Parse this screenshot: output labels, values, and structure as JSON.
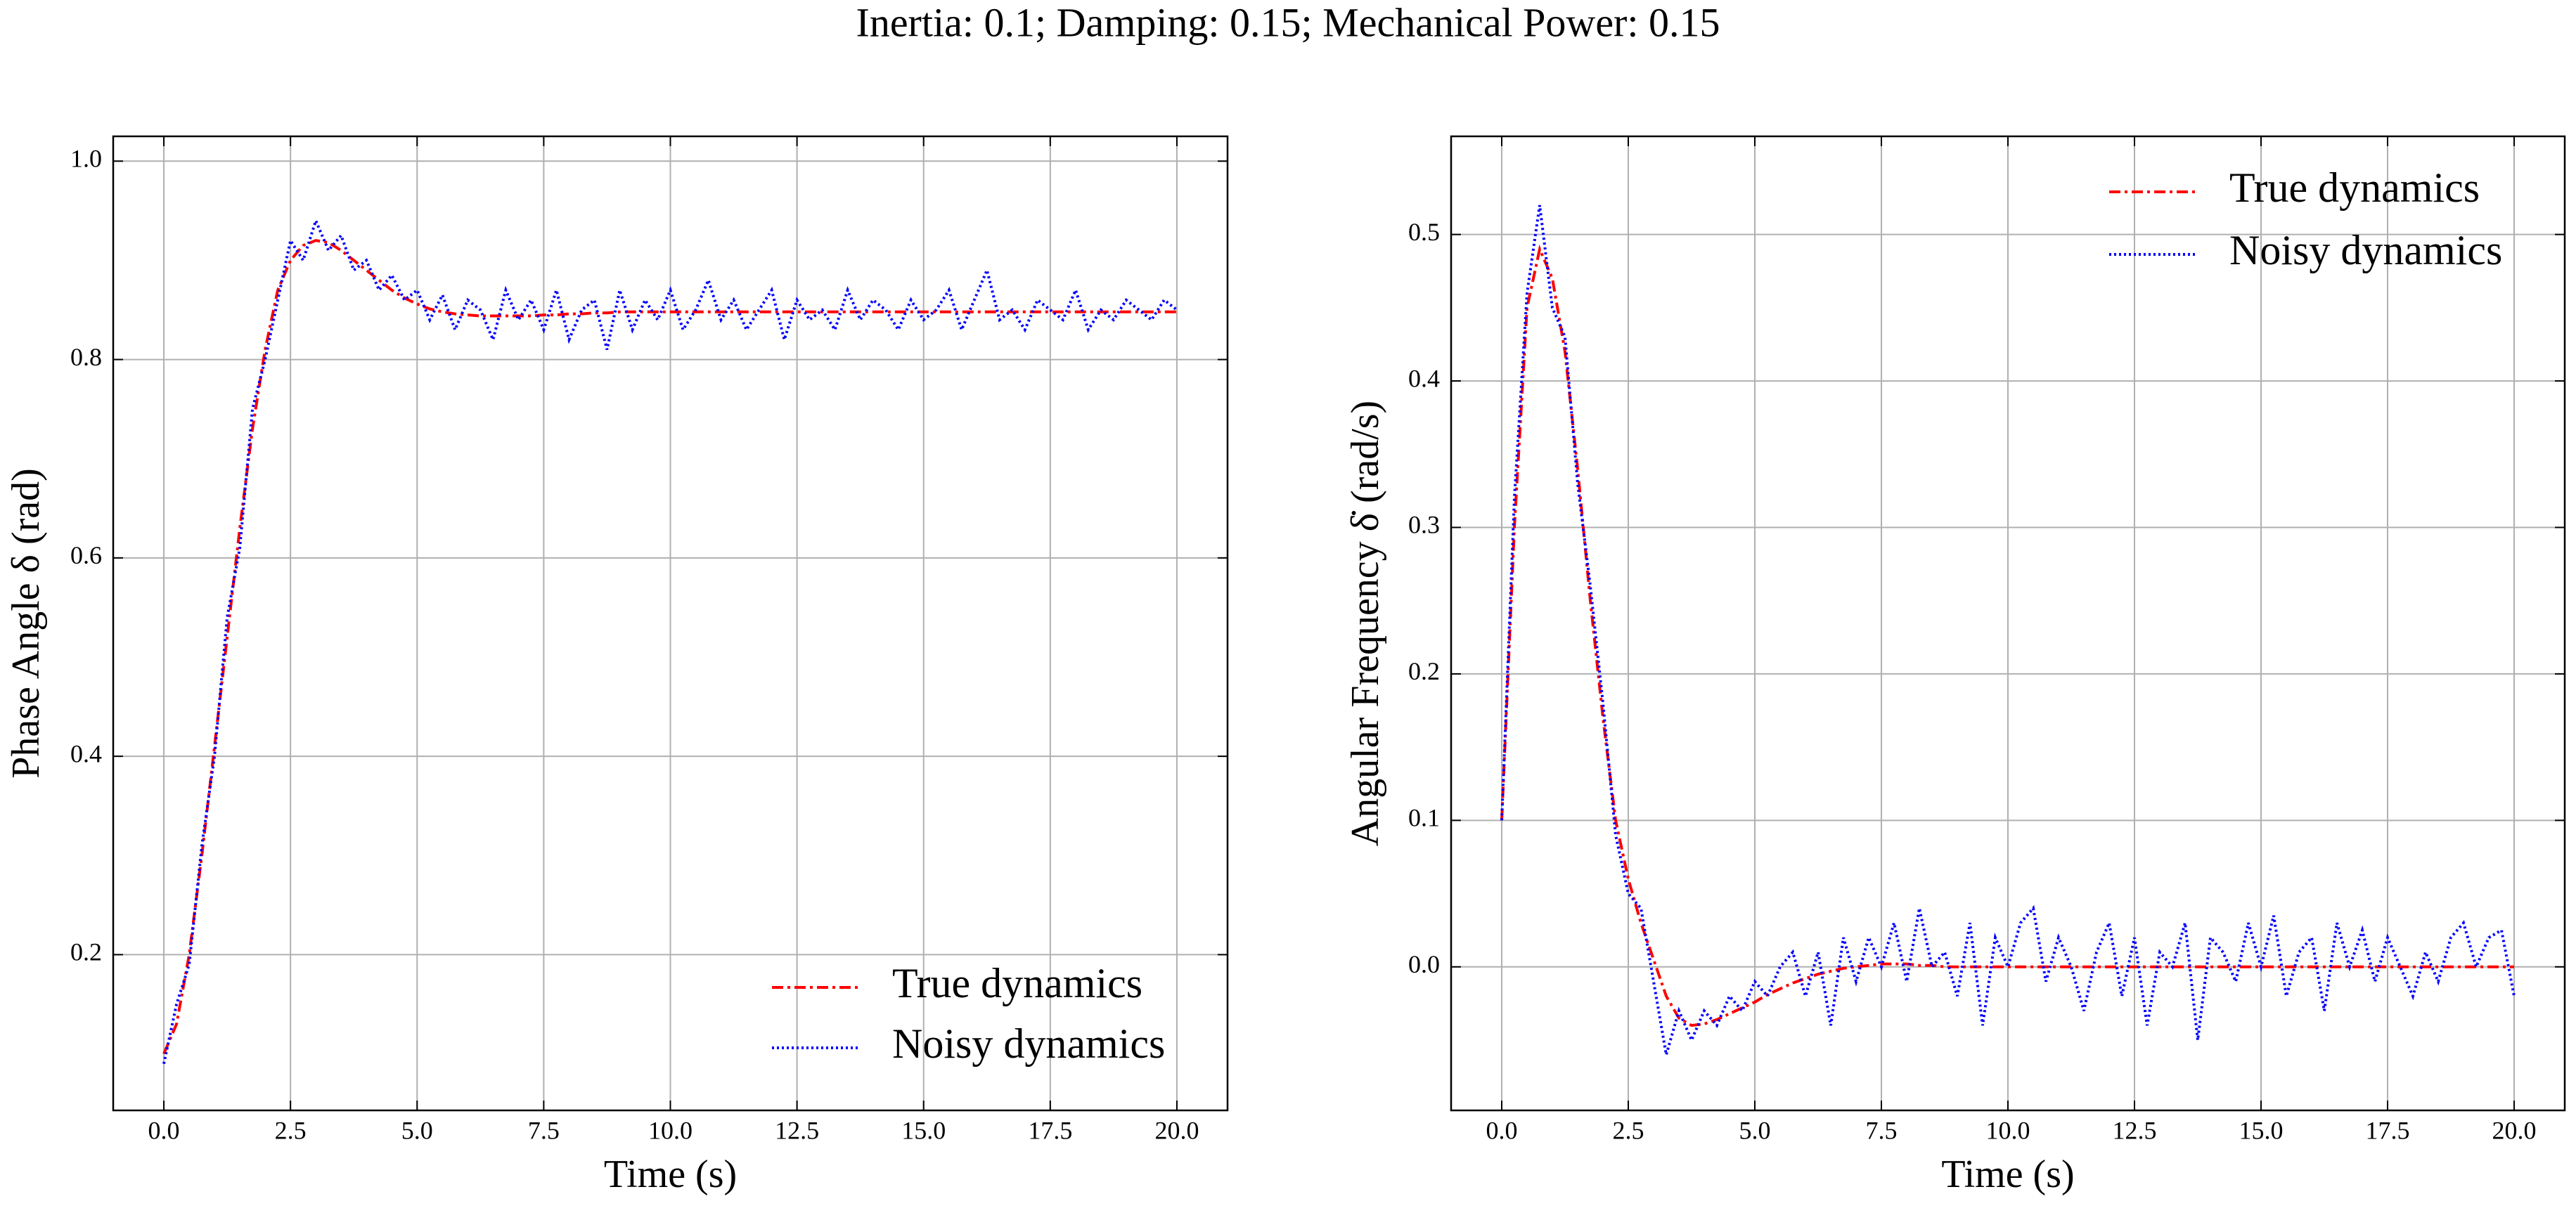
{
  "title": "Inertia: 0.1; Damping: 0.15; Mechanical Power: 0.15",
  "chart_data": [
    {
      "type": "line",
      "xlabel": "Time (s)",
      "ylabel": "Phase Angle δ (rad)",
      "grid": true,
      "legend": "lower right",
      "xlim": [
        -1,
        21
      ],
      "ylim": [
        0.043,
        1.025
      ],
      "xticks": [
        {
          "value": 0,
          "label": "0.0"
        },
        2.5,
        {
          "value": 5,
          "label": "5.0"
        },
        7.5,
        {
          "value": 10,
          "label": "10.0"
        },
        12.5,
        {
          "value": 15,
          "label": "15.0"
        },
        17.5,
        {
          "value": 20,
          "label": "20.0"
        }
      ],
      "yticks": [
        0.2,
        0.4,
        0.6,
        0.8,
        {
          "value": 1,
          "label": "1.0"
        }
      ],
      "x": [
        0,
        0.25,
        0.5,
        0.75,
        1,
        1.25,
        1.5,
        1.75,
        2,
        2.25,
        2.5,
        2.75,
        3,
        3.25,
        3.5,
        3.75,
        4,
        4.25,
        4.5,
        4.75,
        5,
        5.25,
        5.5,
        5.75,
        6,
        6.25,
        6.5,
        6.75,
        7,
        7.25,
        7.5,
        7.75,
        8,
        8.25,
        8.5,
        8.75,
        9,
        9.25,
        9.5,
        9.75,
        10,
        10.25,
        10.5,
        10.75,
        11,
        11.25,
        11.5,
        11.75,
        12,
        12.25,
        12.5,
        12.75,
        13,
        13.25,
        13.5,
        13.75,
        14,
        14.25,
        14.5,
        14.75,
        15,
        15.25,
        15.5,
        15.75,
        16,
        16.25,
        16.5,
        16.75,
        17,
        17.25,
        17.5,
        17.75,
        18,
        18.25,
        18.5,
        18.75,
        19,
        19.25,
        19.5,
        19.75,
        20
      ],
      "series": [
        {
          "name": "True dynamics",
          "color": "#ff0000",
          "style": "dashdot",
          "values": [
            0.1,
            0.13,
            0.2,
            0.3,
            0.41,
            0.52,
            0.63,
            0.73,
            0.81,
            0.87,
            0.9,
            0.915,
            0.92,
            0.918,
            0.91,
            0.9,
            0.89,
            0.88,
            0.87,
            0.862,
            0.856,
            0.851,
            0.848,
            0.846,
            0.845,
            0.844,
            0.844,
            0.844,
            0.844,
            0.844,
            0.845,
            0.845,
            0.846,
            0.846,
            0.847,
            0.847,
            0.848,
            0.848,
            0.848,
            0.848,
            0.848,
            0.848,
            0.848,
            0.848,
            0.848,
            0.848,
            0.848,
            0.848,
            0.848,
            0.848,
            0.848,
            0.848,
            0.848,
            0.848,
            0.848,
            0.848,
            0.848,
            0.848,
            0.848,
            0.848,
            0.848,
            0.848,
            0.848,
            0.848,
            0.848,
            0.848,
            0.848,
            0.848,
            0.848,
            0.848,
            0.848,
            0.848,
            0.848,
            0.848,
            0.848,
            0.848,
            0.848,
            0.848,
            0.848,
            0.848,
            0.848
          ]
        },
        {
          "name": "Noisy dynamics",
          "color": "#0000ff",
          "style": "dotted",
          "values": [
            0.09,
            0.15,
            0.19,
            0.31,
            0.4,
            0.54,
            0.61,
            0.75,
            0.8,
            0.86,
            0.92,
            0.9,
            0.94,
            0.91,
            0.925,
            0.89,
            0.9,
            0.87,
            0.885,
            0.86,
            0.87,
            0.84,
            0.865,
            0.83,
            0.86,
            0.85,
            0.82,
            0.87,
            0.84,
            0.86,
            0.83,
            0.87,
            0.82,
            0.85,
            0.86,
            0.81,
            0.87,
            0.83,
            0.86,
            0.84,
            0.87,
            0.83,
            0.85,
            0.88,
            0.84,
            0.86,
            0.83,
            0.85,
            0.87,
            0.82,
            0.86,
            0.84,
            0.85,
            0.83,
            0.87,
            0.84,
            0.86,
            0.85,
            0.83,
            0.86,
            0.84,
            0.85,
            0.87,
            0.83,
            0.86,
            0.89,
            0.84,
            0.85,
            0.83,
            0.86,
            0.85,
            0.84,
            0.87,
            0.83,
            0.85,
            0.84,
            0.86,
            0.85,
            0.84,
            0.86,
            0.85
          ]
        }
      ]
    },
    {
      "type": "line",
      "xlabel": "Time (s)",
      "ylabel": "Angular Frequency δ̇ (rad/s)",
      "grid": true,
      "legend": "upper right",
      "xlim": [
        -1,
        21
      ],
      "ylim": [
        -0.098,
        0.567
      ],
      "xticks": [
        {
          "value": 0,
          "label": "0.0"
        },
        2.5,
        {
          "value": 5,
          "label": "5.0"
        },
        7.5,
        {
          "value": 10,
          "label": "10.0"
        },
        12.5,
        {
          "value": 15,
          "label": "15.0"
        },
        17.5,
        {
          "value": 20,
          "label": "20.0"
        }
      ],
      "yticks": [
        {
          "value": 0,
          "label": "0.0"
        },
        0.1,
        0.2,
        0.3,
        0.4,
        0.5
      ],
      "x": [
        0,
        0.25,
        0.5,
        0.75,
        1,
        1.25,
        1.5,
        1.75,
        2,
        2.25,
        2.5,
        2.75,
        3,
        3.25,
        3.5,
        3.75,
        4,
        4.25,
        4.5,
        4.75,
        5,
        5.25,
        5.5,
        5.75,
        6,
        6.25,
        6.5,
        6.75,
        7,
        7.25,
        7.5,
        7.75,
        8,
        8.25,
        8.5,
        8.75,
        9,
        9.25,
        9.5,
        9.75,
        10,
        10.25,
        10.5,
        10.75,
        11,
        11.25,
        11.5,
        11.75,
        12,
        12.25,
        12.5,
        12.75,
        13,
        13.25,
        13.5,
        13.75,
        14,
        14.25,
        14.5,
        14.75,
        15,
        15.25,
        15.5,
        15.75,
        16,
        16.25,
        16.5,
        16.75,
        17,
        17.25,
        17.5,
        17.75,
        18,
        18.25,
        18.5,
        18.75,
        19,
        19.25,
        19.5,
        19.75,
        20
      ],
      "series": [
        {
          "name": "True dynamics",
          "color": "#ff0000",
          "style": "dashdot",
          "values": [
            0.1,
            0.3,
            0.45,
            0.49,
            0.47,
            0.42,
            0.34,
            0.25,
            0.17,
            0.1,
            0.06,
            0.03,
            0.005,
            -0.02,
            -0.035,
            -0.04,
            -0.039,
            -0.036,
            -0.032,
            -0.028,
            -0.024,
            -0.019,
            -0.015,
            -0.011,
            -0.008,
            -0.005,
            -0.003,
            -0.001,
            0,
            0.001,
            0.002,
            0.002,
            0.002,
            0.001,
            0.001,
            0,
            0,
            0,
            0,
            0,
            0,
            0,
            0,
            0,
            0,
            0,
            0,
            0,
            0,
            0,
            0,
            0,
            0,
            0,
            0,
            0,
            0,
            0,
            0,
            0,
            0,
            0,
            0,
            0,
            0,
            0,
            0,
            0,
            0,
            0,
            0,
            0,
            0,
            0,
            0,
            0,
            0,
            0,
            0,
            0,
            0
          ]
        },
        {
          "name": "Noisy dynamics",
          "color": "#0000ff",
          "style": "dotted",
          "values": [
            0.1,
            0.32,
            0.46,
            0.52,
            0.45,
            0.43,
            0.33,
            0.26,
            0.18,
            0.09,
            0.05,
            0.04,
            -0.01,
            -0.06,
            -0.03,
            -0.05,
            -0.03,
            -0.04,
            -0.02,
            -0.03,
            -0.01,
            -0.02,
            0.0,
            0.01,
            -0.02,
            0.01,
            -0.04,
            0.02,
            -0.01,
            0.02,
            0.0,
            0.03,
            -0.01,
            0.04,
            0.0,
            0.01,
            -0.02,
            0.03,
            -0.04,
            0.02,
            0.0,
            0.03,
            0.04,
            -0.01,
            0.02,
            0.0,
            -0.03,
            0.01,
            0.03,
            -0.02,
            0.02,
            -0.04,
            0.01,
            0.0,
            0.03,
            -0.05,
            0.02,
            0.01,
            -0.01,
            0.03,
            0.0,
            0.035,
            -0.02,
            0.01,
            0.02,
            -0.03,
            0.03,
            0.0,
            0.025,
            -0.01,
            0.02,
            0.0,
            -0.02,
            0.01,
            -0.01,
            0.02,
            0.03,
            0.0,
            0.02,
            0.025,
            -0.02
          ]
        }
      ]
    }
  ]
}
